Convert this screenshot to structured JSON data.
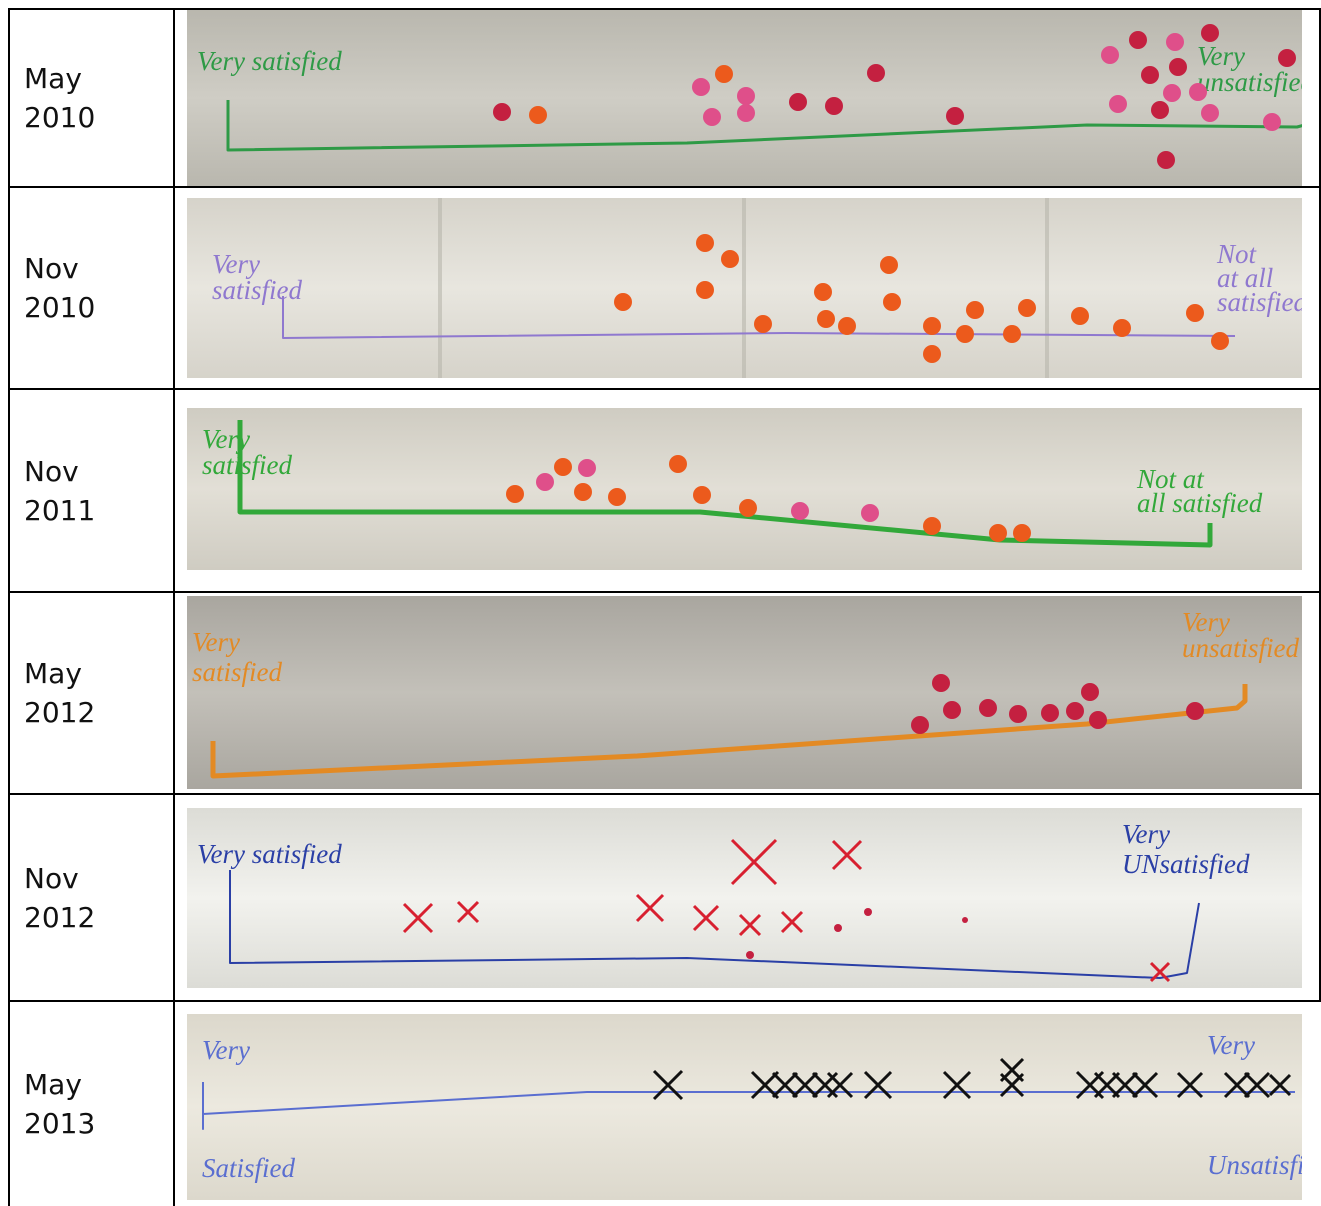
{
  "table": {
    "rows": [
      {
        "month": "May",
        "year": "2010",
        "left_label": [
          "Very satisfied"
        ],
        "right_label": [
          "Very",
          "unsatisfied"
        ]
      },
      {
        "month": "Nov",
        "year": "2010",
        "left_label": [
          "Very",
          "satisfied"
        ],
        "right_label": [
          "Not",
          "at all",
          "satisfied"
        ]
      },
      {
        "month": "Nov",
        "year": "2011",
        "left_label": [
          "Very",
          "satisfied"
        ],
        "right_label": [
          "Not at",
          "all satisfied"
        ]
      },
      {
        "month": "May",
        "year": "2012",
        "left_label": [
          "Very",
          "satisfied"
        ],
        "right_label": [
          "Very",
          "unsatisfied"
        ]
      },
      {
        "month": "Nov",
        "year": "2012",
        "left_label": [
          "Very satisfied"
        ],
        "right_label": [
          "Very",
          "UNsatisfied"
        ]
      },
      {
        "month": "May",
        "year": "2013",
        "left_label": [
          "Very",
          "Satisfied"
        ],
        "right_label": [
          "Very",
          "Unsatisfied"
        ]
      }
    ]
  }
}
